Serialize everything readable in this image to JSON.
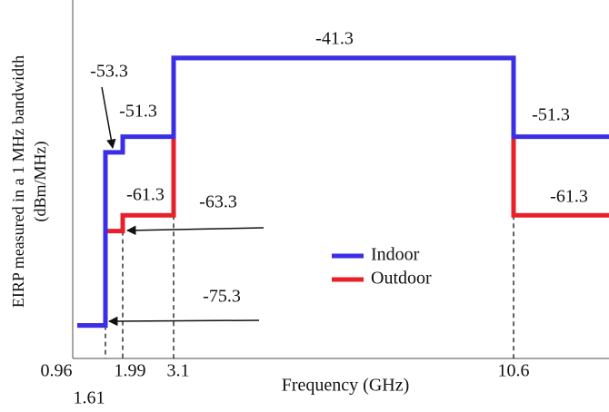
{
  "chart_data": {
    "type": "step",
    "x_label": "Frequency (GHz)",
    "y_label": [
      "EIRP measured in a 1 MHz bandwidth",
      "(dBm/MHz)"
    ],
    "x": [
      0.96,
      1.61,
      1.99,
      3.1,
      10.6
    ],
    "xticks": [
      0.96,
      1.61,
      1.99,
      3.1,
      10.6
    ],
    "ylim": [
      -79.5,
      -34.5
    ],
    "legend": "center",
    "series": [
      {
        "name": "Outdoor",
        "color": "#e8202a",
        "values": [
          -75.3,
          -63.3,
          -61.3,
          -41.3,
          -61.3
        ]
      },
      {
        "name": "Indoor",
        "color": "#3a2ee6",
        "values": [
          -75.3,
          -53.3,
          -51.3,
          -41.3,
          -51.3
        ]
      }
    ]
  }
}
